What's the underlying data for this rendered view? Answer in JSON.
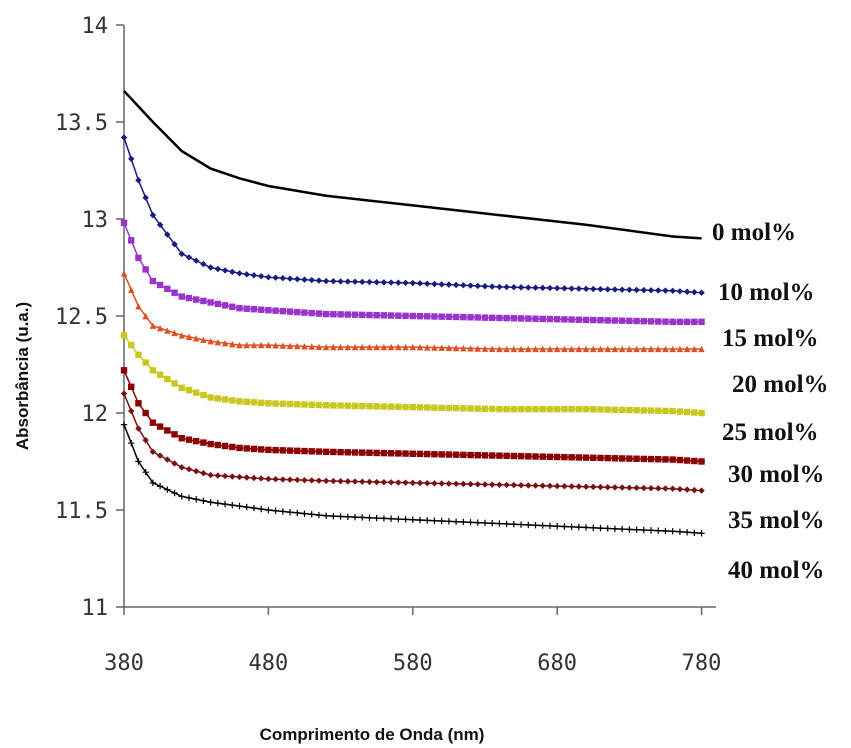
{
  "chart_data": {
    "type": "line",
    "title": "",
    "xlabel": "Comprimento de Onda  (nm)",
    "ylabel": "Absorbância (u.a.)",
    "xlim": [
      380,
      790
    ],
    "ylim": [
      11,
      14
    ],
    "xticks": [
      "380",
      "480",
      "580",
      "680",
      "780"
    ],
    "yticks": [
      "11",
      "11.5",
      "12",
      "12.5",
      "13",
      "13.5",
      "14"
    ],
    "grid": false,
    "legend": "inline labels at right end of each curve",
    "series": [
      {
        "name": "0 mol%",
        "color": "#000000",
        "marker": "none",
        "x": [
          380,
          400,
          420,
          440,
          460,
          480,
          520,
          580,
          640,
          700,
          760,
          780
        ],
        "y": [
          13.66,
          13.5,
          13.35,
          13.26,
          13.21,
          13.17,
          13.12,
          13.07,
          13.02,
          12.97,
          12.91,
          12.9
        ]
      },
      {
        "name": "10 mol%",
        "color": "#1a1a80",
        "marker": "diamond",
        "x": [
          380,
          390,
          400,
          420,
          440,
          460,
          480,
          520,
          580,
          640,
          700,
          760,
          780
        ],
        "y": [
          13.42,
          13.2,
          13.02,
          12.82,
          12.75,
          12.72,
          12.7,
          12.68,
          12.67,
          12.65,
          12.64,
          12.63,
          12.62
        ]
      },
      {
        "name": "15 mol%",
        "color": "#9933cc",
        "marker": "square",
        "x": [
          380,
          390,
          400,
          420,
          440,
          460,
          480,
          520,
          580,
          640,
          700,
          760,
          780
        ],
        "y": [
          12.98,
          12.8,
          12.68,
          12.6,
          12.57,
          12.54,
          12.53,
          12.51,
          12.5,
          12.49,
          12.48,
          12.47,
          12.47
        ]
      },
      {
        "name": "20 mol%",
        "color": "#e05020",
        "marker": "triangle",
        "x": [
          380,
          390,
          400,
          420,
          440,
          460,
          480,
          520,
          580,
          640,
          700,
          760,
          780
        ],
        "y": [
          12.72,
          12.55,
          12.45,
          12.4,
          12.37,
          12.35,
          12.35,
          12.34,
          12.34,
          12.33,
          12.33,
          12.33,
          12.33
        ]
      },
      {
        "name": "25 mol%",
        "color": "#c8c820",
        "marker": "square",
        "x": [
          380,
          390,
          400,
          420,
          440,
          460,
          480,
          520,
          580,
          640,
          700,
          760,
          780
        ],
        "y": [
          12.4,
          12.3,
          12.22,
          12.13,
          12.08,
          12.06,
          12.05,
          12.04,
          12.03,
          12.02,
          12.02,
          12.01,
          12.0
        ]
      },
      {
        "name": "30 mol%",
        "color": "#8b0000",
        "marker": "square",
        "x": [
          380,
          390,
          400,
          420,
          440,
          460,
          480,
          520,
          580,
          640,
          700,
          760,
          780
        ],
        "y": [
          12.22,
          12.05,
          11.95,
          11.87,
          11.84,
          11.82,
          11.81,
          11.8,
          11.79,
          11.78,
          11.77,
          11.76,
          11.75
        ]
      },
      {
        "name": "35 mol%",
        "color": "#7a1010",
        "marker": "diamond",
        "x": [
          380,
          390,
          400,
          420,
          440,
          460,
          480,
          520,
          580,
          640,
          700,
          760,
          780
        ],
        "y": [
          12.1,
          11.92,
          11.8,
          11.72,
          11.68,
          11.67,
          11.66,
          11.65,
          11.64,
          11.63,
          11.62,
          11.61,
          11.6
        ]
      },
      {
        "name": "40 mol%",
        "color": "#000000",
        "marker": "plus",
        "x": [
          380,
          390,
          400,
          420,
          440,
          460,
          480,
          520,
          580,
          640,
          700,
          760,
          780
        ],
        "y": [
          11.94,
          11.75,
          11.64,
          11.57,
          11.54,
          11.52,
          11.5,
          11.47,
          11.45,
          11.43,
          11.41,
          11.39,
          11.38
        ]
      }
    ],
    "series_labels": [
      "0 mol%",
      "10 mol%",
      "15 mol%",
      "20 mol%",
      "25 mol%",
      "30 mol%",
      "35 mol%",
      "40 mol%"
    ]
  }
}
